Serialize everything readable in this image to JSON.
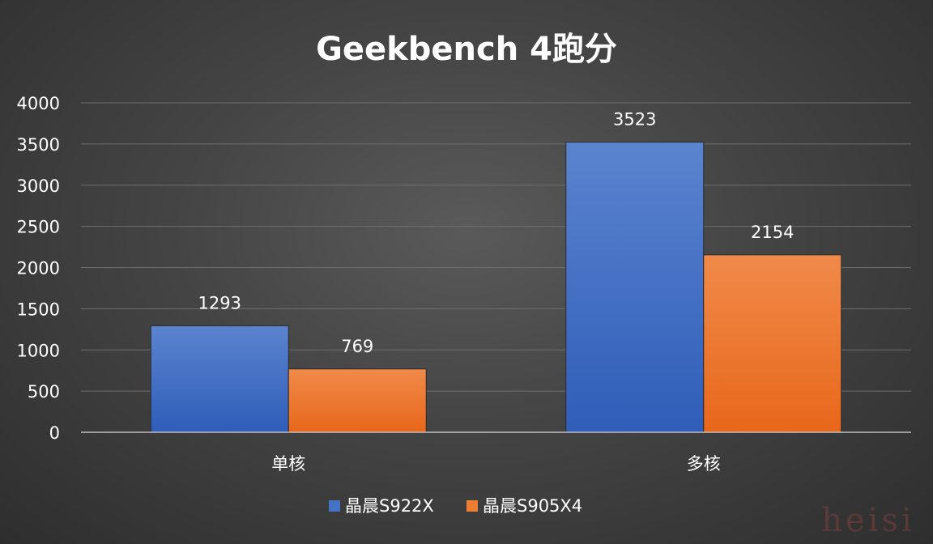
{
  "chart_data": {
    "type": "bar",
    "title": "Geekbench  4跑分",
    "categories": [
      "单核",
      "多核"
    ],
    "series": [
      {
        "name": "晶晨S922X",
        "values": [
          1293,
          3523
        ],
        "color": "#4472C4"
      },
      {
        "name": "晶晨S905X4",
        "values": [
          769,
          2154
        ],
        "color": "#ED7D31"
      }
    ],
    "y_ticks": [
      "0",
      "500",
      "1000",
      "1500",
      "2000",
      "2500",
      "3000",
      "3500",
      "4000"
    ],
    "ylim": [
      0,
      4000
    ],
    "grid": true,
    "legend_position": "bottom",
    "data_labels": true
  },
  "watermark": "heisi"
}
